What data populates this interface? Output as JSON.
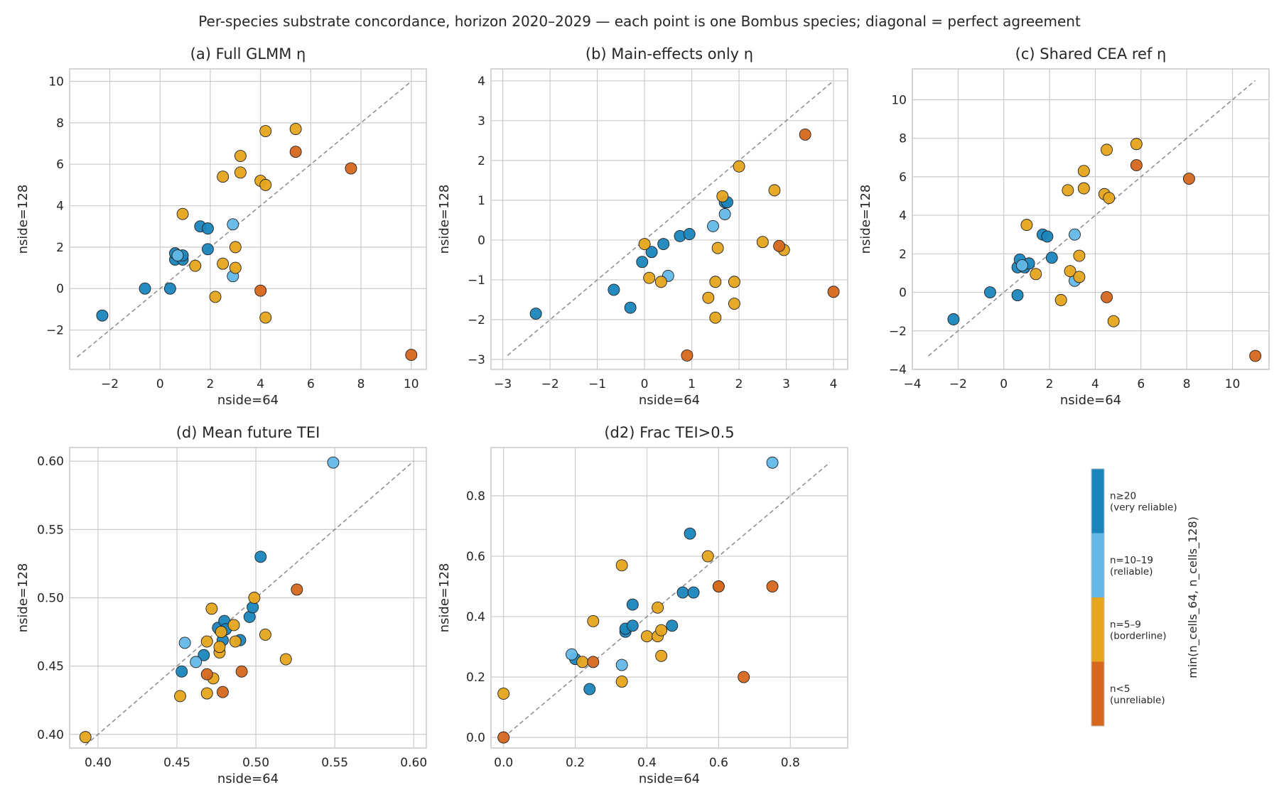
{
  "figure": {
    "suptitle": "Per-species substrate concordance, horizon 2020–2029 — each point is one Bombus species; diagonal = perfect agreement"
  },
  "colors": {
    "very_reliable": "#1a85bc",
    "reliable": "#63b8e8",
    "borderline": "#e5a51c",
    "unreliable": "#d5671e",
    "grid": "#cbcbcb",
    "frame": "#c8c8c8",
    "diagonal": "#8c8c8c"
  },
  "colorbar": {
    "label": "min(n_cells_64, n_cells_128)",
    "categories": [
      {
        "key": "very_reliable",
        "line1": "n≥20",
        "line2": "(very reliable)"
      },
      {
        "key": "reliable",
        "line1": "n=10–19",
        "line2": "(reliable)"
      },
      {
        "key": "borderline",
        "line1": "n=5–9",
        "line2": "(borderline)"
      },
      {
        "key": "unreliable",
        "line1": "n<5",
        "line2": "(unreliable)"
      }
    ]
  },
  "chart_data": [
    {
      "type": "scatter",
      "title": "(a) Full GLMM η",
      "xlabel": "nside=64",
      "ylabel": "nside=128",
      "xlim": [
        -3.6,
        10.6
      ],
      "ylim": [
        -3.9,
        10.6
      ],
      "xticks": [
        -2,
        0,
        2,
        4,
        6,
        8,
        10
      ],
      "yticks": [
        -2,
        0,
        2,
        4,
        6,
        8,
        10
      ],
      "tick_labels_x": [
        "−2",
        "0",
        "2",
        "4",
        "6",
        "8",
        "10"
      ],
      "tick_labels_y": [
        "−2",
        "0",
        "2",
        "4",
        "6",
        "8",
        "10"
      ],
      "diagonal": [
        -3.3,
        10
      ],
      "grid": true,
      "points": [
        {
          "x": -2.3,
          "y": -1.3,
          "c": "very_reliable"
        },
        {
          "x": -0.6,
          "y": 0.0,
          "c": "very_reliable"
        },
        {
          "x": 0.4,
          "y": 0.0,
          "c": "very_reliable"
        },
        {
          "x": 0.6,
          "y": 1.4,
          "c": "very_reliable"
        },
        {
          "x": 0.6,
          "y": 1.7,
          "c": "very_reliable"
        },
        {
          "x": 0.9,
          "y": 1.4,
          "c": "very_reliable"
        },
        {
          "x": 0.9,
          "y": 1.6,
          "c": "very_reliable"
        },
        {
          "x": 0.7,
          "y": 1.6,
          "c": "reliable"
        },
        {
          "x": 1.6,
          "y": 3.0,
          "c": "very_reliable"
        },
        {
          "x": 1.9,
          "y": 2.9,
          "c": "very_reliable"
        },
        {
          "x": 1.9,
          "y": 1.9,
          "c": "very_reliable"
        },
        {
          "x": 2.9,
          "y": 3.1,
          "c": "reliable"
        },
        {
          "x": 2.9,
          "y": 0.6,
          "c": "reliable"
        },
        {
          "x": 0.9,
          "y": 3.6,
          "c": "borderline"
        },
        {
          "x": 1.4,
          "y": 1.1,
          "c": "borderline"
        },
        {
          "x": 2.2,
          "y": -0.4,
          "c": "borderline"
        },
        {
          "x": 2.5,
          "y": 5.4,
          "c": "borderline"
        },
        {
          "x": 2.5,
          "y": 1.2,
          "c": "borderline"
        },
        {
          "x": 3.0,
          "y": 2.0,
          "c": "borderline"
        },
        {
          "x": 3.0,
          "y": 1.0,
          "c": "borderline"
        },
        {
          "x": 3.2,
          "y": 6.4,
          "c": "borderline"
        },
        {
          "x": 3.2,
          "y": 5.6,
          "c": "borderline"
        },
        {
          "x": 4.0,
          "y": 5.2,
          "c": "borderline"
        },
        {
          "x": 4.2,
          "y": 5.0,
          "c": "borderline"
        },
        {
          "x": 4.2,
          "y": 7.6,
          "c": "borderline"
        },
        {
          "x": 4.2,
          "y": -1.4,
          "c": "borderline"
        },
        {
          "x": 5.4,
          "y": 7.7,
          "c": "borderline"
        },
        {
          "x": 4.0,
          "y": -0.1,
          "c": "unreliable"
        },
        {
          "x": 5.4,
          "y": 6.6,
          "c": "unreliable"
        },
        {
          "x": 7.6,
          "y": 5.8,
          "c": "unreliable"
        },
        {
          "x": 10.0,
          "y": -3.2,
          "c": "unreliable"
        }
      ]
    },
    {
      "type": "scatter",
      "title": "(b) Main-effects only η",
      "xlabel": "nside=64",
      "ylabel": "nside=128",
      "xlim": [
        -3.25,
        4.3
      ],
      "ylim": [
        -3.25,
        4.3
      ],
      "xticks": [
        -3,
        -2,
        -1,
        0,
        1,
        2,
        3,
        4
      ],
      "yticks": [
        -3,
        -2,
        -1,
        0,
        1,
        2,
        3,
        4
      ],
      "tick_labels_x": [
        "−3",
        "−2",
        "−1",
        "0",
        "1",
        "2",
        "3",
        "4"
      ],
      "tick_labels_y": [
        "−3",
        "−2",
        "−1",
        "0",
        "1",
        "2",
        "3",
        "4"
      ],
      "diagonal": [
        -2.9,
        4.0
      ],
      "grid": true,
      "points": [
        {
          "x": -2.3,
          "y": -1.85,
          "c": "very_reliable"
        },
        {
          "x": -0.65,
          "y": -1.25,
          "c": "very_reliable"
        },
        {
          "x": -0.3,
          "y": -1.7,
          "c": "very_reliable"
        },
        {
          "x": -0.05,
          "y": -0.55,
          "c": "very_reliable"
        },
        {
          "x": 0.15,
          "y": -0.3,
          "c": "very_reliable"
        },
        {
          "x": 0.4,
          "y": -0.1,
          "c": "very_reliable"
        },
        {
          "x": 0.75,
          "y": 0.1,
          "c": "very_reliable"
        },
        {
          "x": 0.95,
          "y": 0.15,
          "c": "very_reliable"
        },
        {
          "x": 1.7,
          "y": 0.95,
          "c": "very_reliable"
        },
        {
          "x": 1.75,
          "y": 0.95,
          "c": "very_reliable"
        },
        {
          "x": 0.5,
          "y": -0.9,
          "c": "reliable"
        },
        {
          "x": 1.45,
          "y": 0.35,
          "c": "reliable"
        },
        {
          "x": 1.7,
          "y": 0.65,
          "c": "reliable"
        },
        {
          "x": 0.0,
          "y": -0.1,
          "c": "borderline"
        },
        {
          "x": 0.1,
          "y": -0.95,
          "c": "borderline"
        },
        {
          "x": 0.35,
          "y": -1.05,
          "c": "borderline"
        },
        {
          "x": 1.35,
          "y": -1.45,
          "c": "borderline"
        },
        {
          "x": 1.5,
          "y": -1.95,
          "c": "borderline"
        },
        {
          "x": 1.5,
          "y": -1.05,
          "c": "borderline"
        },
        {
          "x": 1.55,
          "y": -0.2,
          "c": "borderline"
        },
        {
          "x": 1.65,
          "y": 1.1,
          "c": "borderline"
        },
        {
          "x": 1.9,
          "y": -1.6,
          "c": "borderline"
        },
        {
          "x": 1.9,
          "y": -1.05,
          "c": "borderline"
        },
        {
          "x": 2.0,
          "y": 1.85,
          "c": "borderline"
        },
        {
          "x": 2.5,
          "y": -0.05,
          "c": "borderline"
        },
        {
          "x": 2.75,
          "y": 1.25,
          "c": "borderline"
        },
        {
          "x": 2.95,
          "y": -0.25,
          "c": "borderline"
        },
        {
          "x": 0.9,
          "y": -2.9,
          "c": "unreliable"
        },
        {
          "x": 2.85,
          "y": -0.15,
          "c": "unreliable"
        },
        {
          "x": 3.4,
          "y": 2.65,
          "c": "unreliable"
        },
        {
          "x": 4.0,
          "y": -1.3,
          "c": "unreliable"
        }
      ]
    },
    {
      "type": "scatter",
      "title": "(c) Shared CEA ref η",
      "xlabel": "nside=64",
      "ylabel": "nside=128",
      "xlim": [
        -4.0,
        11.6
      ],
      "ylim": [
        -4.0,
        11.6
      ],
      "xticks": [
        -4,
        -2,
        0,
        2,
        4,
        6,
        8,
        10
      ],
      "yticks": [
        -4,
        -2,
        0,
        2,
        4,
        6,
        8,
        10
      ],
      "tick_labels_x": [
        "−4",
        "−2",
        "0",
        "2",
        "4",
        "6",
        "8",
        "10"
      ],
      "tick_labels_y": [
        "−4",
        "−2",
        "0",
        "2",
        "4",
        "6",
        "8",
        "10"
      ],
      "diagonal": [
        -3.3,
        11.0
      ],
      "grid": true,
      "points": [
        {
          "x": -2.2,
          "y": -1.4,
          "c": "very_reliable"
        },
        {
          "x": -0.6,
          "y": 0.0,
          "c": "very_reliable"
        },
        {
          "x": 0.6,
          "y": -0.15,
          "c": "very_reliable"
        },
        {
          "x": 0.6,
          "y": 1.3,
          "c": "very_reliable"
        },
        {
          "x": 0.7,
          "y": 1.7,
          "c": "very_reliable"
        },
        {
          "x": 0.9,
          "y": 1.3,
          "c": "very_reliable"
        },
        {
          "x": 1.1,
          "y": 1.5,
          "c": "very_reliable"
        },
        {
          "x": 1.7,
          "y": 3.0,
          "c": "very_reliable"
        },
        {
          "x": 1.9,
          "y": 2.9,
          "c": "very_reliable"
        },
        {
          "x": 2.1,
          "y": 1.8,
          "c": "very_reliable"
        },
        {
          "x": 0.8,
          "y": 1.4,
          "c": "reliable"
        },
        {
          "x": 3.1,
          "y": 3.0,
          "c": "reliable"
        },
        {
          "x": 3.1,
          "y": 0.6,
          "c": "reliable"
        },
        {
          "x": 1.0,
          "y": 3.5,
          "c": "borderline"
        },
        {
          "x": 1.4,
          "y": 0.95,
          "c": "borderline"
        },
        {
          "x": 2.5,
          "y": -0.4,
          "c": "borderline"
        },
        {
          "x": 2.8,
          "y": 5.3,
          "c": "borderline"
        },
        {
          "x": 2.9,
          "y": 1.1,
          "c": "borderline"
        },
        {
          "x": 3.3,
          "y": 1.9,
          "c": "borderline"
        },
        {
          "x": 3.3,
          "y": 0.8,
          "c": "borderline"
        },
        {
          "x": 3.5,
          "y": 6.3,
          "c": "borderline"
        },
        {
          "x": 3.5,
          "y": 5.4,
          "c": "borderline"
        },
        {
          "x": 4.4,
          "y": 5.1,
          "c": "borderline"
        },
        {
          "x": 4.5,
          "y": 7.4,
          "c": "borderline"
        },
        {
          "x": 4.6,
          "y": 4.9,
          "c": "borderline"
        },
        {
          "x": 4.8,
          "y": -1.5,
          "c": "borderline"
        },
        {
          "x": 5.8,
          "y": 7.7,
          "c": "borderline"
        },
        {
          "x": 4.5,
          "y": -0.25,
          "c": "unreliable"
        },
        {
          "x": 5.8,
          "y": 6.6,
          "c": "unreliable"
        },
        {
          "x": 8.1,
          "y": 5.9,
          "c": "unreliable"
        },
        {
          "x": 11.0,
          "y": -3.3,
          "c": "unreliable"
        }
      ]
    },
    {
      "type": "scatter",
      "title": "(d) Mean future TEI",
      "xlabel": "nside=64",
      "ylabel": "nside=128",
      "xlim": [
        0.382,
        0.608
      ],
      "ylim": [
        0.39,
        0.61
      ],
      "xticks": [
        0.4,
        0.45,
        0.5,
        0.55,
        0.6
      ],
      "yticks": [
        0.4,
        0.45,
        0.5,
        0.55,
        0.6
      ],
      "tick_labels_x": [
        "0.40",
        "0.45",
        "0.50",
        "0.55",
        "0.60"
      ],
      "tick_labels_y": [
        "0.40",
        "0.45",
        "0.50",
        "0.55",
        "0.60"
      ],
      "diagonal": [
        0.392,
        0.6
      ],
      "grid": true,
      "points": [
        {
          "x": 0.453,
          "y": 0.446,
          "c": "very_reliable"
        },
        {
          "x": 0.467,
          "y": 0.458,
          "c": "very_reliable"
        },
        {
          "x": 0.476,
          "y": 0.478,
          "c": "very_reliable"
        },
        {
          "x": 0.479,
          "y": 0.469,
          "c": "very_reliable"
        },
        {
          "x": 0.48,
          "y": 0.483,
          "c": "very_reliable"
        },
        {
          "x": 0.481,
          "y": 0.477,
          "c": "very_reliable"
        },
        {
          "x": 0.49,
          "y": 0.469,
          "c": "very_reliable"
        },
        {
          "x": 0.496,
          "y": 0.486,
          "c": "very_reliable"
        },
        {
          "x": 0.498,
          "y": 0.493,
          "c": "very_reliable"
        },
        {
          "x": 0.503,
          "y": 0.53,
          "c": "very_reliable"
        },
        {
          "x": 0.455,
          "y": 0.467,
          "c": "reliable"
        },
        {
          "x": 0.462,
          "y": 0.453,
          "c": "reliable"
        },
        {
          "x": 0.549,
          "y": 0.599,
          "c": "reliable"
        },
        {
          "x": 0.392,
          "y": 0.398,
          "c": "borderline"
        },
        {
          "x": 0.452,
          "y": 0.428,
          "c": "borderline"
        },
        {
          "x": 0.469,
          "y": 0.43,
          "c": "borderline"
        },
        {
          "x": 0.469,
          "y": 0.468,
          "c": "borderline"
        },
        {
          "x": 0.472,
          "y": 0.492,
          "c": "borderline"
        },
        {
          "x": 0.473,
          "y": 0.441,
          "c": "borderline"
        },
        {
          "x": 0.477,
          "y": 0.46,
          "c": "borderline"
        },
        {
          "x": 0.477,
          "y": 0.464,
          "c": "borderline"
        },
        {
          "x": 0.478,
          "y": 0.475,
          "c": "borderline"
        },
        {
          "x": 0.486,
          "y": 0.48,
          "c": "borderline"
        },
        {
          "x": 0.487,
          "y": 0.468,
          "c": "borderline"
        },
        {
          "x": 0.499,
          "y": 0.5,
          "c": "borderline"
        },
        {
          "x": 0.506,
          "y": 0.473,
          "c": "borderline"
        },
        {
          "x": 0.519,
          "y": 0.455,
          "c": "borderline"
        },
        {
          "x": 0.469,
          "y": 0.444,
          "c": "unreliable"
        },
        {
          "x": 0.479,
          "y": 0.431,
          "c": "unreliable"
        },
        {
          "x": 0.491,
          "y": 0.446,
          "c": "unreliable"
        },
        {
          "x": 0.526,
          "y": 0.506,
          "c": "unreliable"
        }
      ]
    },
    {
      "type": "scatter",
      "title": "(d2) Frac TEI>0.5",
      "xlabel": "nside=64",
      "ylabel": "nside=128",
      "xlim": [
        -0.035,
        0.96
      ],
      "ylim": [
        -0.035,
        0.96
      ],
      "xticks": [
        0.0,
        0.2,
        0.4,
        0.6,
        0.8
      ],
      "yticks": [
        0.0,
        0.2,
        0.4,
        0.6,
        0.8
      ],
      "tick_labels_x": [
        "0.0",
        "0.2",
        "0.4",
        "0.6",
        "0.8"
      ],
      "tick_labels_y": [
        "0.0",
        "0.2",
        "0.4",
        "0.6",
        "0.8"
      ],
      "diagonal": [
        0.0,
        0.91
      ],
      "grid": true,
      "points": [
        {
          "x": 0.2,
          "y": 0.26,
          "c": "very_reliable"
        },
        {
          "x": 0.24,
          "y": 0.16,
          "c": "very_reliable"
        },
        {
          "x": 0.34,
          "y": 0.35,
          "c": "very_reliable"
        },
        {
          "x": 0.34,
          "y": 0.36,
          "c": "very_reliable"
        },
        {
          "x": 0.36,
          "y": 0.37,
          "c": "very_reliable"
        },
        {
          "x": 0.36,
          "y": 0.44,
          "c": "very_reliable"
        },
        {
          "x": 0.47,
          "y": 0.37,
          "c": "very_reliable"
        },
        {
          "x": 0.5,
          "y": 0.48,
          "c": "very_reliable"
        },
        {
          "x": 0.52,
          "y": 0.675,
          "c": "very_reliable"
        },
        {
          "x": 0.53,
          "y": 0.48,
          "c": "very_reliable"
        },
        {
          "x": 0.19,
          "y": 0.275,
          "c": "reliable"
        },
        {
          "x": 0.33,
          "y": 0.24,
          "c": "reliable"
        },
        {
          "x": 0.75,
          "y": 0.91,
          "c": "reliable"
        },
        {
          "x": 0.0,
          "y": 0.145,
          "c": "borderline"
        },
        {
          "x": 0.22,
          "y": 0.25,
          "c": "borderline"
        },
        {
          "x": 0.25,
          "y": 0.385,
          "c": "borderline"
        },
        {
          "x": 0.33,
          "y": 0.57,
          "c": "borderline"
        },
        {
          "x": 0.33,
          "y": 0.185,
          "c": "borderline"
        },
        {
          "x": 0.4,
          "y": 0.335,
          "c": "borderline"
        },
        {
          "x": 0.43,
          "y": 0.335,
          "c": "borderline"
        },
        {
          "x": 0.43,
          "y": 0.43,
          "c": "borderline"
        },
        {
          "x": 0.44,
          "y": 0.355,
          "c": "borderline"
        },
        {
          "x": 0.44,
          "y": 0.27,
          "c": "borderline"
        },
        {
          "x": 0.57,
          "y": 0.6,
          "c": "borderline"
        },
        {
          "x": 0.6,
          "y": 0.5,
          "c": "borderline"
        },
        {
          "x": 0.0,
          "y": 0.0,
          "c": "unreliable"
        },
        {
          "x": 0.25,
          "y": 0.25,
          "c": "unreliable"
        },
        {
          "x": 0.6,
          "y": 0.5,
          "c": "unreliable"
        },
        {
          "x": 0.67,
          "y": 0.2,
          "c": "unreliable"
        },
        {
          "x": 0.75,
          "y": 0.5,
          "c": "unreliable"
        }
      ]
    }
  ]
}
